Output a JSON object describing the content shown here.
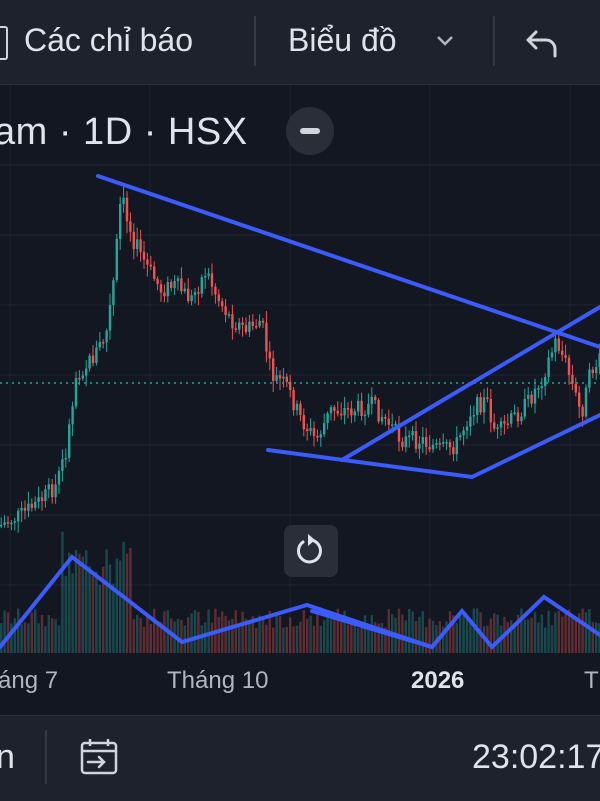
{
  "toolbar": {
    "indicators_label": "Các chỉ báo",
    "chart_label": "Biểu đồ",
    "icons": [
      "indicators-partial-icon",
      "chevron-down-icon",
      "undo-icon"
    ]
  },
  "chart": {
    "title_partial": "am · 1D · HSX",
    "x_ticks": [
      "áng 7",
      "Tháng 10",
      "2026",
      "Th"
    ],
    "accent_colors": {
      "up": "#26a69a",
      "down": "#ef5350",
      "drawing": "#2962ff",
      "background": "#131722"
    }
  },
  "bottombar": {
    "left_partial": "n",
    "time": "23:02:17"
  }
}
